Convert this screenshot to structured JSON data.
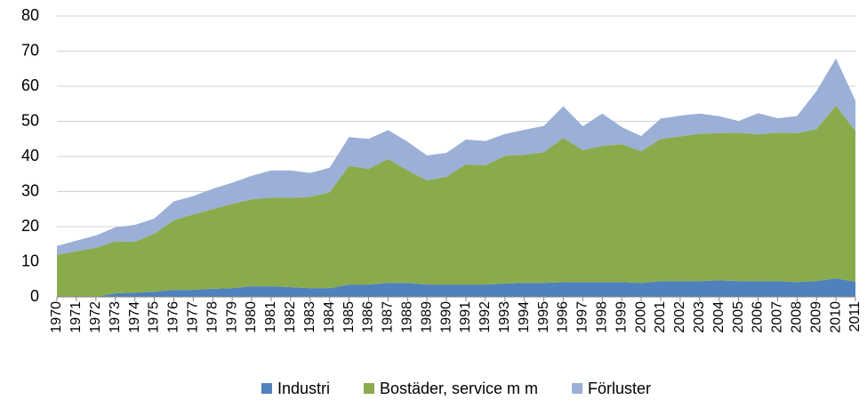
{
  "chart_data": {
    "type": "stacked-area",
    "categories": [
      "1970",
      "1971",
      "1972",
      "1973",
      "1974",
      "1975",
      "1976",
      "1977",
      "1978",
      "1979",
      "1980",
      "1981",
      "1982",
      "1983",
      "1984",
      "1985",
      "1986",
      "1987",
      "1988",
      "1989",
      "1990",
      "1991",
      "1992",
      "1993",
      "1994",
      "1995",
      "1996",
      "1997",
      "1998",
      "1999",
      "2000",
      "2001",
      "2002",
      "2003",
      "2004",
      "2005",
      "2006",
      "2007",
      "2008",
      "2009",
      "2010",
      "2011"
    ],
    "series": [
      {
        "name": "Industri",
        "color": "#4f81bd",
        "values": [
          0,
          0,
          0,
          1,
          1.2,
          1.5,
          2,
          2,
          2.3,
          2.5,
          3,
          3,
          2.8,
          2.5,
          2.5,
          3.5,
          3.5,
          4,
          4,
          3.5,
          3.5,
          3.5,
          3.5,
          3.8,
          4,
          4,
          4.2,
          4.2,
          4.2,
          4.2,
          4,
          4.5,
          4.5,
          4.5,
          4.7,
          4.5,
          4.5,
          4.5,
          4.2,
          4.5,
          5.3,
          4.3
        ]
      },
      {
        "name": "Bostäder, service m m",
        "color": "#8aab4c",
        "values": [
          12,
          13,
          14,
          14.8,
          14.5,
          16.5,
          19.8,
          21.5,
          22.7,
          24,
          24.8,
          25.3,
          25.4,
          26,
          27.3,
          33.8,
          33,
          35.3,
          32,
          29.7,
          30.7,
          34.3,
          34,
          36.4,
          36.5,
          37.2,
          41.1,
          37.6,
          38.8,
          39.3,
          37.5,
          40.5,
          41.2,
          42,
          41.9,
          42.3,
          41.8,
          42.3,
          42.4,
          43.3,
          49.2,
          42.9
        ]
      },
      {
        "name": "Förluster",
        "color": "#9bafd7",
        "values": [
          2.5,
          3,
          3.5,
          4,
          4.8,
          4.3,
          5.4,
          5.2,
          5.8,
          6,
          6.7,
          7.7,
          7.8,
          6.8,
          7,
          8.2,
          8.5,
          8.2,
          8.2,
          7.1,
          6.8,
          7,
          6.9,
          6.2,
          7.1,
          7.5,
          9,
          6.8,
          9.2,
          4.9,
          4.3,
          5.8,
          5.9,
          5.7,
          4.9,
          3.3,
          6,
          4.1,
          4.9,
          10.8,
          13.4,
          8.7
        ]
      }
    ],
    "ylim": [
      0,
      80
    ],
    "yticks": [
      0,
      10,
      20,
      30,
      40,
      50,
      60,
      70,
      80
    ],
    "grid": true,
    "legend": "bottom"
  }
}
